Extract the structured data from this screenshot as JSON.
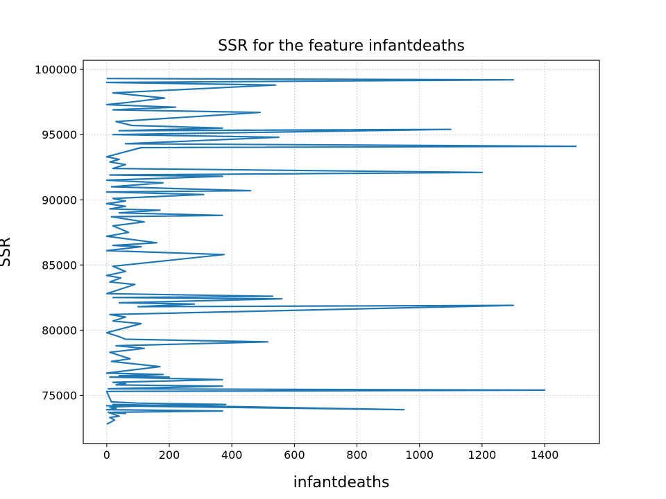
{
  "chart_data": {
    "type": "line",
    "title": "SSR for the feature infantdeaths",
    "xlabel": "infantdeaths",
    "ylabel": "SSR",
    "xlim": [
      -75,
      1575
    ],
    "ylim": [
      71300,
      100700
    ],
    "xticks": [
      0,
      200,
      400,
      600,
      800,
      1000,
      1200,
      1400
    ],
    "yticks": [
      75000,
      80000,
      85000,
      90000,
      95000,
      100000
    ],
    "grid": true,
    "line_color": "#1f77b4",
    "series": [
      {
        "x": [
          0,
          10,
          25,
          10,
          40,
          5,
          60,
          20,
          370,
          0,
          5,
          30,
          10,
          130,
          20,
          950,
          0,
          380,
          100,
          15,
          0,
          1400,
          5,
          370,
          30,
          60,
          20,
          370,
          10,
          200,
          40,
          180,
          0,
          170,
          15,
          75,
          10,
          120,
          30,
          515,
          60,
          40,
          0,
          110,
          20,
          60,
          10,
          1300,
          100,
          280,
          40,
          560,
          20,
          530,
          0,
          90,
          10,
          45,
          0,
          60,
          20,
          375,
          0,
          110,
          20,
          160,
          0,
          70,
          20,
          120,
          15,
          370,
          40,
          170,
          10,
          60,
          0,
          60,
          20,
          310,
          0,
          460,
          15,
          180,
          0,
          370,
          10,
          1200,
          20,
          60,
          10,
          40,
          0,
          110,
          1500,
          60,
          550,
          20,
          1100,
          40,
          370,
          80,
          30,
          360,
          490,
          20,
          220,
          0,
          80,
          185,
          20,
          540,
          0,
          1300,
          10,
          0
        ],
        "y": [
          72800,
          72900,
          73100,
          73300,
          73400,
          73700,
          73600,
          73700,
          73800,
          73900,
          73900,
          74000,
          74100,
          74200,
          74300,
          73900,
          74200,
          74300,
          74400,
          74500,
          75300,
          75400,
          75500,
          75700,
          75800,
          75900,
          76000,
          76200,
          76400,
          76400,
          76500,
          76600,
          76700,
          77200,
          77600,
          77800,
          78300,
          78600,
          78800,
          79100,
          79300,
          79500,
          79800,
          80500,
          80700,
          81000,
          81200,
          81900,
          81800,
          82000,
          82100,
          82400,
          82500,
          82600,
          82800,
          83500,
          83700,
          84000,
          84200,
          84500,
          84900,
          85800,
          86100,
          86400,
          86500,
          86700,
          87200,
          87500,
          88000,
          88300,
          88700,
          88800,
          89000,
          89200,
          89300,
          89500,
          89700,
          89900,
          90100,
          90400,
          90600,
          90700,
          91000,
          91300,
          91500,
          91800,
          91900,
          92100,
          92400,
          92700,
          92900,
          93100,
          93300,
          94000,
          94100,
          94300,
          94800,
          95000,
          95400,
          95300,
          95500,
          95700,
          96000,
          96500,
          96700,
          96900,
          97100,
          97300,
          97500,
          97800,
          98200,
          98800,
          99000,
          99200,
          99300,
          99300
        ]
      }
    ]
  }
}
